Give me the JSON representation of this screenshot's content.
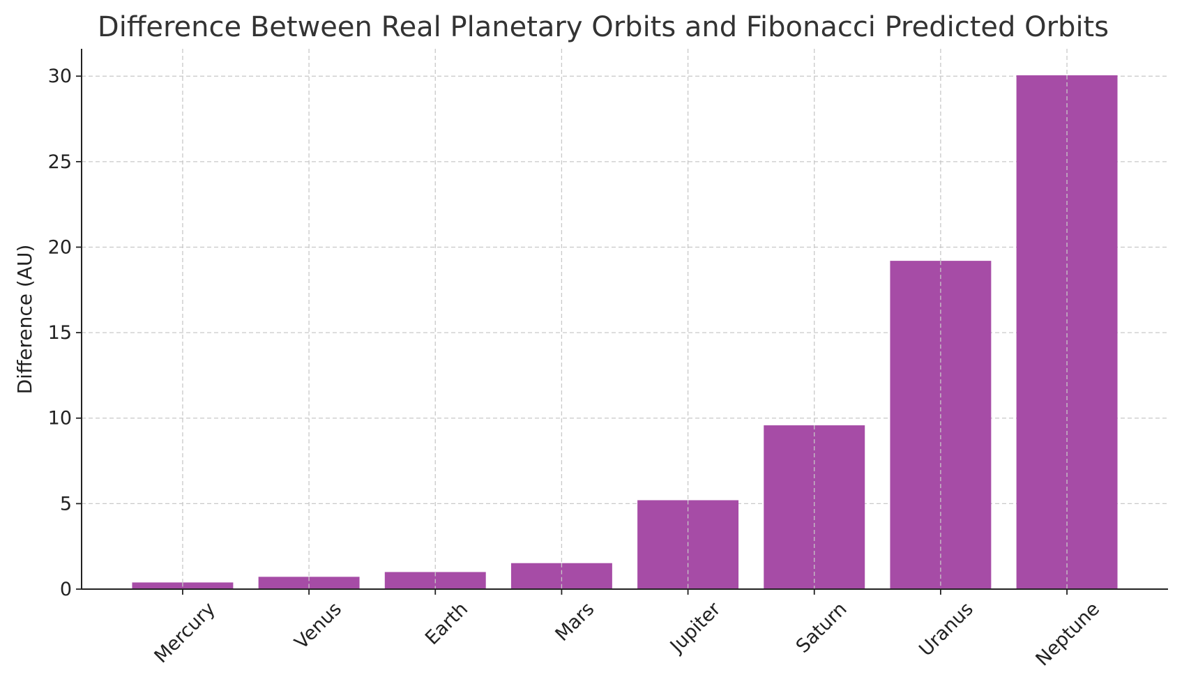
{
  "chart_data": {
    "type": "bar",
    "title": "Difference Between Real Planetary Orbits and Fibonacci Predicted Orbits",
    "xlabel": "",
    "ylabel": "Difference (AU)",
    "categories": [
      "Mercury",
      "Venus",
      "Earth",
      "Mars",
      "Jupiter",
      "Saturn",
      "Uranus",
      "Neptune"
    ],
    "values": [
      0.39,
      0.72,
      1.0,
      1.52,
      5.2,
      9.58,
      19.2,
      30.05
    ],
    "ylim": [
      0,
      31.6
    ],
    "yticks": [
      0,
      5,
      10,
      15,
      20,
      25,
      30
    ],
    "ytick_labels": [
      "0",
      "5",
      "10",
      "15",
      "20",
      "25",
      "30"
    ],
    "grid": true,
    "legend": "none",
    "bar_color": "#a64ca6"
  }
}
